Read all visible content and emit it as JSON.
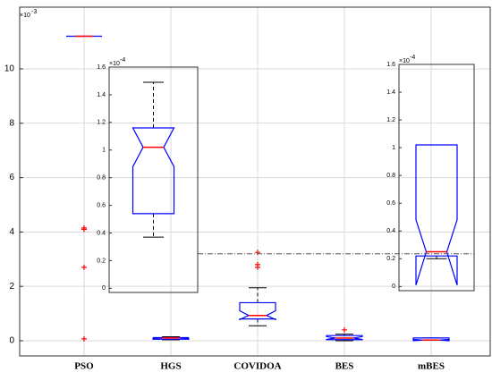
{
  "chart_data": {
    "type": "box",
    "categories": [
      "PSO",
      "HGS",
      "COVIDOA",
      "BES",
      "mBES"
    ],
    "multiplier": {
      "base": "×10",
      "exponent": "-3"
    },
    "ylim": [
      -0.56,
      12.27
    ],
    "yticks": [
      0,
      2,
      4,
      6,
      8,
      10
    ],
    "grid": true,
    "box_color": "#0000ff",
    "median_color": "#ff0000",
    "whisker_color": "#000000",
    "outlier_color": "#ff0000",
    "boxes": [
      {
        "q1": 11.2,
        "median": 11.2,
        "q3": 11.2,
        "whisker_low": 11.2,
        "whisker_high": 11.2,
        "notch_low": 11.2,
        "notch_high": 11.2,
        "outliers": [
          4.15,
          4.1,
          2.7,
          0.07
        ]
      },
      {
        "q1": 0.054,
        "median": 0.102,
        "q3": 0.116,
        "whisker_low": 0.037,
        "whisker_high": 0.149,
        "notch_low": 0.088,
        "notch_high": 0.116,
        "outliers": [],
        "inset": {
          "multiplier": {
            "base": "×10",
            "exponent": "-4"
          },
          "ylim": [
            -0.03,
            1.6
          ],
          "yticks": [
            0,
            0.2,
            0.4,
            0.6,
            0.8,
            1,
            1.2,
            1.4,
            1.6
          ],
          "q1": 0.54,
          "median": 1.02,
          "q3": 1.16,
          "whisker_low": 0.37,
          "whisker_high": 1.49,
          "notch_low": 0.88,
          "notch_high": 1.16
        }
      },
      {
        "q1": 0.8,
        "median": 0.93,
        "q3": 1.4,
        "whisker_low": 0.55,
        "whisker_high": 1.95,
        "notch_low": 0.78,
        "notch_high": 1.1,
        "outliers": [
          3.25,
          2.8,
          2.7
        ]
      },
      {
        "q1": 0.04,
        "median": 0.1,
        "q3": 0.19,
        "whisker_low": 0.0,
        "whisker_high": 0.24,
        "notch_low": 0.05,
        "notch_high": 0.15,
        "outliers": [
          0.4
        ]
      },
      {
        "q1": 0.022,
        "median": 0.025,
        "q3": 0.102,
        "whisker_low": 0.02,
        "whisker_high": 0.102,
        "notch_low": 0.001,
        "notch_high": 0.048,
        "outliers": [],
        "inset": {
          "multiplier": {
            "base": "×10",
            "exponent": "-4"
          },
          "ylim": [
            -0.03,
            1.6
          ],
          "yticks": [
            0,
            0.2,
            0.4,
            0.6,
            0.8,
            1,
            1.2,
            1.4,
            1.6
          ],
          "q1": 0.22,
          "median": 0.25,
          "q3": 1.02,
          "whisker_low": 0.2,
          "whisker_high": 1.02,
          "notch_low": 0.01,
          "notch_high": 0.48
        }
      }
    ],
    "reference_line": 0.25
  }
}
